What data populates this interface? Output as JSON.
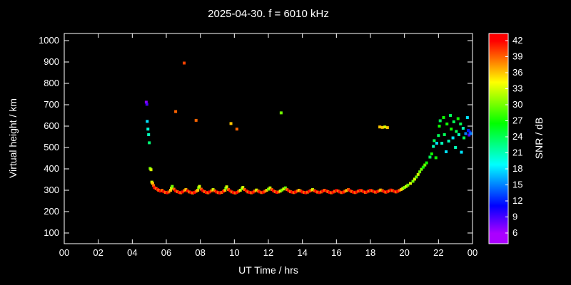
{
  "background": "#000000",
  "text_color": "#ffffff",
  "chart_data": {
    "type": "scatter",
    "title": "2025-04-30. f = 6010 kHz",
    "xlabel": "UT Time / hrs",
    "ylabel": "Virtual height / km",
    "xlim": [
      0,
      24
    ],
    "ylim": [
      100,
      1000
    ],
    "xtick_values": [
      0,
      2,
      4,
      6,
      8,
      10,
      12,
      14,
      16,
      18,
      20,
      22,
      24
    ],
    "xtick_labels": [
      "00",
      "02",
      "04",
      "06",
      "08",
      "10",
      "12",
      "14",
      "16",
      "18",
      "20",
      "22",
      "00"
    ],
    "ytick_values": [
      100,
      200,
      300,
      400,
      500,
      600,
      700,
      800,
      900,
      1000
    ],
    "colorbar": {
      "label": "SNR / dB",
      "min": 6,
      "max": 42,
      "ticks": [
        6,
        9,
        12,
        15,
        18,
        21,
        24,
        27,
        30,
        33,
        36,
        39,
        42
      ],
      "bottom_color": "#8800ff",
      "top_color": "#ff0000"
    },
    "grid": false,
    "legend": "none",
    "points_format": [
      "ut_hours",
      "virtual_height_km",
      "snr_db"
    ],
    "points": [
      [
        4.82,
        712,
        7
      ],
      [
        4.86,
        702,
        9
      ],
      [
        4.88,
        622,
        18
      ],
      [
        4.92,
        586,
        20
      ],
      [
        4.96,
        560,
        21
      ],
      [
        5.0,
        522,
        23
      ],
      [
        5.05,
        402,
        30
      ],
      [
        5.1,
        396,
        33
      ],
      [
        5.15,
        338,
        33
      ],
      [
        5.2,
        332,
        36
      ],
      [
        5.25,
        322,
        39
      ],
      [
        5.3,
        312,
        42
      ],
      [
        5.4,
        308,
        39
      ],
      [
        5.5,
        303,
        42
      ],
      [
        5.55,
        300,
        39
      ],
      [
        5.65,
        296,
        42
      ],
      [
        5.75,
        300,
        39
      ],
      [
        5.85,
        293,
        42
      ],
      [
        5.95,
        290,
        39
      ],
      [
        6.05,
        288,
        42
      ],
      [
        6.15,
        292,
        39
      ],
      [
        6.25,
        300,
        36
      ],
      [
        6.3,
        310,
        33
      ],
      [
        6.35,
        318,
        30
      ],
      [
        6.45,
        305,
        39
      ],
      [
        6.55,
        297,
        42
      ],
      [
        6.65,
        293,
        39
      ],
      [
        6.75,
        290,
        42
      ],
      [
        6.85,
        288,
        39
      ],
      [
        6.95,
        292,
        42
      ],
      [
        7.05,
        298,
        39
      ],
      [
        7.15,
        303,
        36
      ],
      [
        7.25,
        297,
        42
      ],
      [
        7.35,
        292,
        39
      ],
      [
        7.45,
        289,
        42
      ],
      [
        7.55,
        287,
        39
      ],
      [
        7.65,
        290,
        42
      ],
      [
        7.75,
        295,
        39
      ],
      [
        7.85,
        300,
        36
      ],
      [
        7.9,
        312,
        30
      ],
      [
        7.95,
        318,
        33
      ],
      [
        8.05,
        305,
        39
      ],
      [
        8.15,
        298,
        42
      ],
      [
        8.25,
        293,
        39
      ],
      [
        8.35,
        290,
        42
      ],
      [
        8.45,
        288,
        39
      ],
      [
        8.55,
        292,
        42
      ],
      [
        8.65,
        297,
        39
      ],
      [
        8.75,
        303,
        33
      ],
      [
        8.85,
        297,
        39
      ],
      [
        8.95,
        292,
        42
      ],
      [
        9.05,
        289,
        39
      ],
      [
        9.15,
        287,
        42
      ],
      [
        9.25,
        290,
        39
      ],
      [
        9.35,
        295,
        42
      ],
      [
        9.45,
        300,
        36
      ],
      [
        9.5,
        310,
        30
      ],
      [
        9.55,
        316,
        33
      ],
      [
        9.65,
        303,
        39
      ],
      [
        9.75,
        297,
        42
      ],
      [
        9.85,
        292,
        39
      ],
      [
        9.95,
        289,
        42
      ],
      [
        10.05,
        287,
        39
      ],
      [
        10.15,
        290,
        42
      ],
      [
        10.25,
        295,
        39
      ],
      [
        10.35,
        300,
        33
      ],
      [
        10.45,
        307,
        30
      ],
      [
        10.5,
        313,
        33
      ],
      [
        10.6,
        303,
        39
      ],
      [
        10.7,
        297,
        42
      ],
      [
        10.8,
        292,
        39
      ],
      [
        10.9,
        290,
        42
      ],
      [
        11.0,
        288,
        39
      ],
      [
        11.1,
        291,
        42
      ],
      [
        11.2,
        296,
        39
      ],
      [
        11.3,
        301,
        33
      ],
      [
        11.4,
        296,
        39
      ],
      [
        11.5,
        292,
        42
      ],
      [
        11.6,
        289,
        39
      ],
      [
        11.7,
        291,
        42
      ],
      [
        11.8,
        295,
        39
      ],
      [
        11.9,
        300,
        36
      ],
      [
        12.0,
        305,
        30
      ],
      [
        12.1,
        311,
        33
      ],
      [
        12.2,
        303,
        39
      ],
      [
        12.3,
        297,
        42
      ],
      [
        12.4,
        293,
        39
      ],
      [
        12.5,
        290,
        42
      ],
      [
        12.6,
        292,
        39
      ],
      [
        12.7,
        296,
        33
      ],
      [
        12.8,
        301,
        30
      ],
      [
        12.9,
        306,
        33
      ],
      [
        13.0,
        311,
        30
      ],
      [
        13.1,
        303,
        39
      ],
      [
        13.2,
        297,
        42
      ],
      [
        13.3,
        293,
        39
      ],
      [
        13.4,
        291,
        42
      ],
      [
        13.5,
        289,
        39
      ],
      [
        13.6,
        292,
        42
      ],
      [
        13.7,
        296,
        39
      ],
      [
        13.8,
        300,
        36
      ],
      [
        13.9,
        296,
        39
      ],
      [
        14.0,
        292,
        42
      ],
      [
        14.1,
        290,
        39
      ],
      [
        14.2,
        288,
        42
      ],
      [
        14.3,
        291,
        39
      ],
      [
        14.4,
        295,
        42
      ],
      [
        14.5,
        299,
        39
      ],
      [
        14.6,
        303,
        33
      ],
      [
        14.7,
        298,
        39
      ],
      [
        14.8,
        294,
        42
      ],
      [
        14.9,
        291,
        39
      ],
      [
        15.0,
        289,
        42
      ],
      [
        15.1,
        292,
        39
      ],
      [
        15.2,
        296,
        42
      ],
      [
        15.3,
        300,
        39
      ],
      [
        15.4,
        297,
        42
      ],
      [
        15.5,
        293,
        39
      ],
      [
        15.6,
        290,
        42
      ],
      [
        15.7,
        288,
        39
      ],
      [
        15.8,
        291,
        42
      ],
      [
        15.9,
        295,
        39
      ],
      [
        16.0,
        299,
        42
      ],
      [
        16.1,
        296,
        39
      ],
      [
        16.2,
        292,
        42
      ],
      [
        16.3,
        289,
        39
      ],
      [
        16.4,
        291,
        42
      ],
      [
        16.5,
        295,
        39
      ],
      [
        16.6,
        299,
        36
      ],
      [
        16.7,
        303,
        39
      ],
      [
        16.8,
        298,
        42
      ],
      [
        16.9,
        294,
        39
      ],
      [
        17.0,
        291,
        42
      ],
      [
        17.1,
        289,
        39
      ],
      [
        17.2,
        292,
        42
      ],
      [
        17.3,
        296,
        39
      ],
      [
        17.4,
        300,
        42
      ],
      [
        17.5,
        297,
        39
      ],
      [
        17.6,
        293,
        42
      ],
      [
        17.7,
        290,
        39
      ],
      [
        17.8,
        292,
        42
      ],
      [
        17.9,
        296,
        39
      ],
      [
        18.0,
        300,
        42
      ],
      [
        18.1,
        297,
        39
      ],
      [
        18.2,
        293,
        42
      ],
      [
        18.3,
        291,
        39
      ],
      [
        18.4,
        293,
        42
      ],
      [
        18.5,
        297,
        39
      ],
      [
        18.6,
        301,
        36
      ],
      [
        18.7,
        298,
        39
      ],
      [
        18.8,
        294,
        42
      ],
      [
        18.9,
        291,
        39
      ],
      [
        19.0,
        293,
        42
      ],
      [
        19.1,
        297,
        39
      ],
      [
        19.2,
        301,
        42
      ],
      [
        19.3,
        298,
        39
      ],
      [
        19.4,
        295,
        42
      ],
      [
        19.5,
        292,
        39
      ],
      [
        19.6,
        295,
        42
      ],
      [
        19.7,
        299,
        39
      ],
      [
        19.8,
        303,
        36
      ],
      [
        19.9,
        308,
        33
      ],
      [
        20.0,
        313,
        30
      ],
      [
        20.1,
        318,
        33
      ],
      [
        20.2,
        324,
        30
      ],
      [
        20.35,
        332,
        33
      ],
      [
        20.5,
        342,
        30
      ],
      [
        20.6,
        352,
        33
      ],
      [
        20.7,
        362,
        30
      ],
      [
        20.8,
        374,
        33
      ],
      [
        20.9,
        386,
        30
      ],
      [
        21.0,
        398,
        30
      ],
      [
        21.1,
        408,
        27
      ],
      [
        21.2,
        418,
        30
      ],
      [
        21.3,
        428,
        27
      ],
      [
        21.5,
        455,
        24
      ],
      [
        21.6,
        470,
        27
      ],
      [
        21.7,
        505,
        21
      ],
      [
        21.75,
        532,
        24
      ],
      [
        21.85,
        452,
        27
      ],
      [
        21.9,
        520,
        18
      ],
      [
        22.0,
        556,
        24
      ],
      [
        22.05,
        600,
        27
      ],
      [
        22.1,
        625,
        24
      ],
      [
        22.2,
        520,
        21
      ],
      [
        22.3,
        640,
        27
      ],
      [
        22.35,
        560,
        24
      ],
      [
        22.45,
        480,
        18
      ],
      [
        22.5,
        610,
        27
      ],
      [
        22.6,
        530,
        21
      ],
      [
        22.7,
        650,
        24
      ],
      [
        22.75,
        586,
        27
      ],
      [
        22.85,
        545,
        18
      ],
      [
        22.9,
        620,
        24
      ],
      [
        23.0,
        500,
        21
      ],
      [
        23.05,
        575,
        24
      ],
      [
        23.15,
        635,
        27
      ],
      [
        23.2,
        560,
        21
      ],
      [
        23.3,
        610,
        24
      ],
      [
        23.35,
        478,
        18
      ],
      [
        23.45,
        590,
        21
      ],
      [
        23.5,
        545,
        24
      ],
      [
        23.6,
        565,
        15
      ],
      [
        23.7,
        640,
        18
      ],
      [
        23.75,
        580,
        12
      ],
      [
        23.8,
        558,
        9
      ],
      [
        23.85,
        572,
        12
      ],
      [
        23.9,
        565,
        15
      ],
      [
        6.55,
        668,
        39
      ],
      [
        7.05,
        895,
        40
      ],
      [
        7.75,
        627,
        39
      ],
      [
        9.8,
        612,
        36
      ],
      [
        10.15,
        586,
        39
      ],
      [
        12.75,
        662,
        30
      ],
      [
        18.55,
        596,
        36
      ],
      [
        18.7,
        594,
        36
      ],
      [
        18.85,
        596,
        33
      ],
      [
        19.0,
        593,
        36
      ]
    ]
  }
}
